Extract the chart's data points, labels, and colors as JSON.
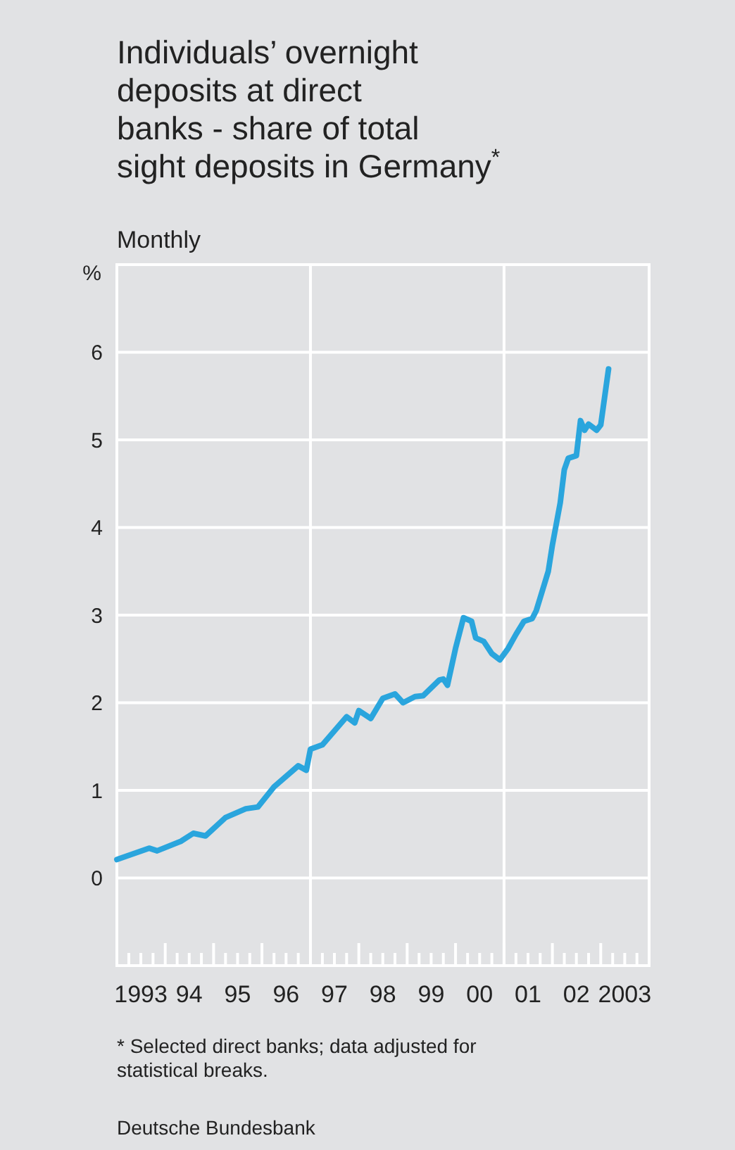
{
  "chart_data": {
    "type": "line",
    "title": "Individuals’ overnight\ndeposits at direct\nbanks - share of total\nsight deposits in Germany$^{*}$",
    "subtitle": "Monthly",
    "ylabel": "%",
    "series": [
      {
        "color": "#2aa5dd",
        "x": [
          "1993-01",
          "1993-09",
          "1993-11",
          "1994-05",
          "1994-08",
          "1994-11",
          "1995-04",
          "1995-09",
          "1995-12",
          "1996-04",
          "1996-10",
          "1996-12",
          "1997-01",
          "1997-04",
          "1997-10",
          "1997-12",
          "1998-01",
          "1998-04",
          "1998-07",
          "1998-10",
          "1998-12",
          "1999-03",
          "1999-05",
          "1999-09",
          "1999-10",
          "1999-11",
          "2000-01",
          "2000-03",
          "2000-05",
          "2000-06",
          "2000-08",
          "2000-10",
          "2000-12",
          "2001-02",
          "2001-04",
          "2001-06",
          "2001-08",
          "2001-09",
          "2001-12",
          "2002-01",
          "2002-03",
          "2002-04",
          "2002-05",
          "2002-07",
          "2002-08",
          "2002-09",
          "2002-10",
          "2002-12",
          "2003-01",
          "2003-03"
        ],
        "values": [
          0.21,
          0.34,
          0.31,
          0.42,
          0.51,
          0.48,
          0.69,
          0.79,
          0.81,
          1.04,
          1.28,
          1.23,
          1.47,
          1.52,
          1.84,
          1.77,
          1.91,
          1.82,
          2.05,
          2.1,
          2.0,
          2.07,
          2.08,
          2.26,
          2.27,
          2.2,
          2.62,
          2.97,
          2.93,
          2.74,
          2.7,
          2.56,
          2.49,
          2.62,
          2.78,
          2.93,
          2.96,
          3.05,
          3.5,
          3.8,
          4.28,
          4.66,
          4.79,
          4.82,
          5.22,
          5.11,
          5.18,
          5.11,
          5.17,
          5.81
        ]
      }
    ],
    "xlim": [
      "1993-01",
      "2004-01"
    ],
    "ylim": [
      -1,
      7
    ],
    "yticks": [
      0,
      1,
      2,
      3,
      4,
      5,
      6
    ],
    "xticks": [
      {
        "value": "1993-01",
        "label": null
      },
      {
        "value": "1993-04",
        "label": null
      },
      {
        "value": "1993-07",
        "label": "1993"
      },
      {
        "value": "1993-10",
        "label": null
      },
      {
        "value": "1994-01",
        "label": null
      },
      {
        "value": "1994-04",
        "label": null
      },
      {
        "value": "1994-07",
        "label": "94"
      },
      {
        "value": "1994-10",
        "label": null
      },
      {
        "value": "1995-01",
        "label": null
      },
      {
        "value": "1995-04",
        "label": null
      },
      {
        "value": "1995-07",
        "label": "95"
      },
      {
        "value": "1995-10",
        "label": null
      },
      {
        "value": "1996-01",
        "label": null
      },
      {
        "value": "1996-04",
        "label": null
      },
      {
        "value": "1996-07",
        "label": "96"
      },
      {
        "value": "1996-10",
        "label": null
      },
      {
        "value": "1997-01",
        "label": null
      },
      {
        "value": "1997-04",
        "label": null
      },
      {
        "value": "1997-07",
        "label": "97"
      },
      {
        "value": "1997-10",
        "label": null
      },
      {
        "value": "1998-01",
        "label": null
      },
      {
        "value": "1998-04",
        "label": null
      },
      {
        "value": "1998-07",
        "label": "98"
      },
      {
        "value": "1998-10",
        "label": null
      },
      {
        "value": "1999-01",
        "label": null
      },
      {
        "value": "1999-04",
        "label": null
      },
      {
        "value": "1999-07",
        "label": "99"
      },
      {
        "value": "1999-10",
        "label": null
      },
      {
        "value": "2000-01",
        "label": null
      },
      {
        "value": "2000-04",
        "label": null
      },
      {
        "value": "2000-07",
        "label": "00"
      },
      {
        "value": "2000-10",
        "label": null
      },
      {
        "value": "2001-01",
        "label": null
      },
      {
        "value": "2001-04",
        "label": null
      },
      {
        "value": "2001-07",
        "label": "01"
      },
      {
        "value": "2001-10",
        "label": null
      },
      {
        "value": "2002-01",
        "label": null
      },
      {
        "value": "2002-04",
        "label": null
      },
      {
        "value": "2002-07",
        "label": "02"
      },
      {
        "value": "2002-10",
        "label": null
      },
      {
        "value": "2003-01",
        "label": null
      },
      {
        "value": "2003-04",
        "label": null
      },
      {
        "value": "2003-07",
        "label": "2003"
      },
      {
        "value": "2003-10",
        "label": null
      },
      {
        "value": "2004-01",
        "label": null
      }
    ],
    "grid": "y",
    "ref_lines": [
      {
        "axis": "x",
        "value": "1997-01",
        "color": "#ffffff"
      },
      {
        "axis": "x",
        "value": "2001-01",
        "color": "#ffffff"
      }
    ],
    "annotations": [
      "* Selected direct banks; data adjusted for\nstatistical breaks.",
      "Deutsche Bundesbank"
    ]
  }
}
